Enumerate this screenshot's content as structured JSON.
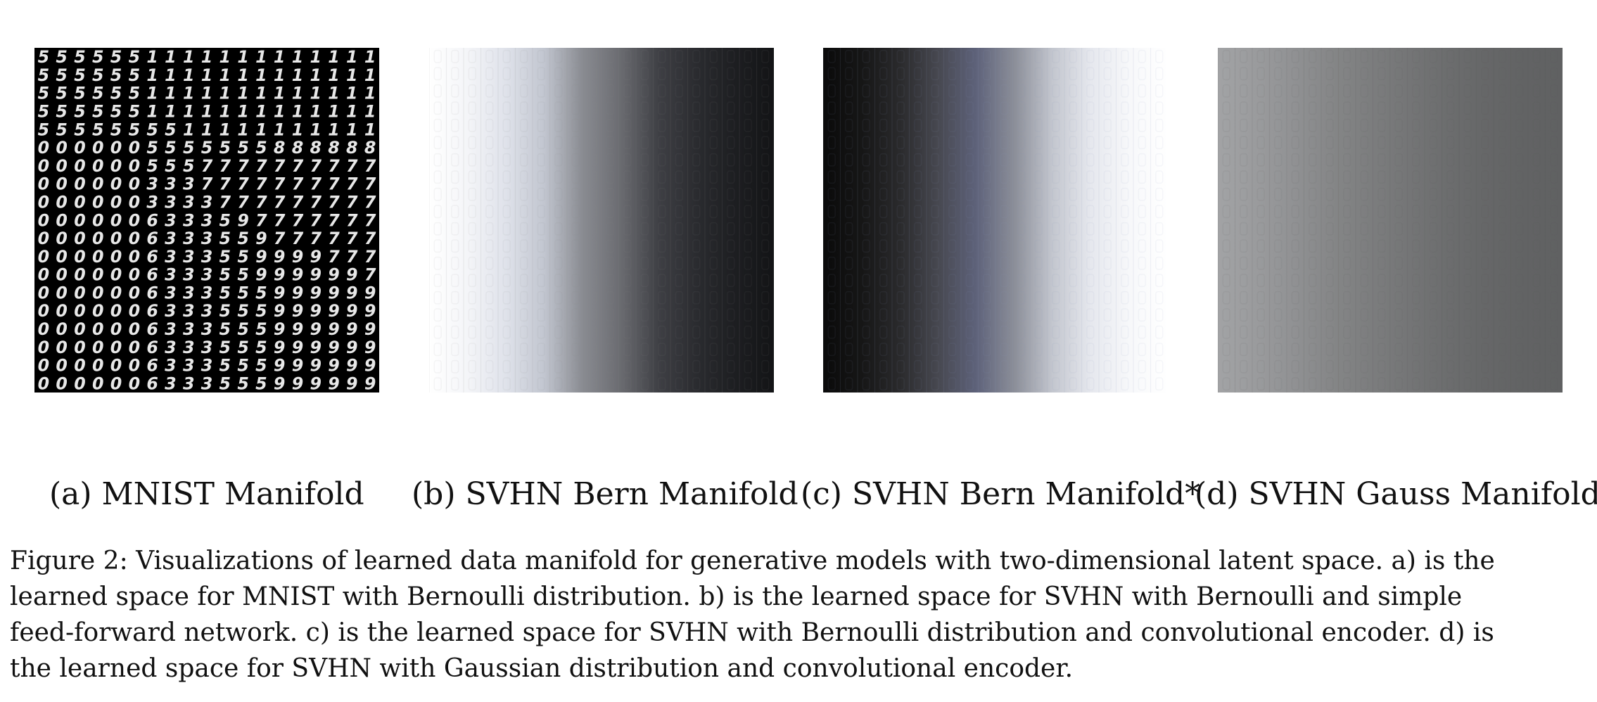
{
  "subfigures": [
    {
      "caption": "(a) MNIST Manifold",
      "digit_grid": [
        "5555551111111111111",
        "5555551111111111111",
        "5555551111111111111",
        "5555551111111111111",
        "5555555511111111111",
        "0000005555555888888",
        "0000005557777777777",
        "0000003337777777777",
        "0000003333777777777",
        "0000006333597777777",
        "0000006333559777777",
        "0000006333559999777",
        "0000006333559999997",
        "0000006333555999999",
        "0000006333555999999",
        "0000006333555999999",
        "0000006333555999999",
        "0000006333555999999",
        "0000006333555999999"
      ]
    },
    {
      "caption": "(b) SVHN Bern Manifold"
    },
    {
      "caption": "(c) SVHN Bern Manifold*"
    },
    {
      "caption": "(d) SVHN Gauss Manifold"
    }
  ],
  "figure_caption_lines": [
    "Figure 2: Visualizations of learned data manifold for generative models with two-dimensional latent space. a) is the",
    "learned space for MNIST with Bernoulli distribution. b) is the learned space for SVHN with Bernoulli and simple",
    "feed-forward network. c) is the learned space for SVHN with Bernoulli distribution and convolutional encoder. d) is",
    "the learned space for SVHN with Gaussian distribution and convolutional encoder."
  ],
  "colors": {
    "panel_b_gradient": [
      "#ffffff",
      "#f4f5f8",
      "#dfe2ea",
      "#c2c6d0",
      "#8a8c92",
      "#6a6b70",
      "#3e3f44",
      "#2a2b2f",
      "#1d1e21",
      "#131416"
    ],
    "panel_c_gradient": [
      "#0a0a0a",
      "#161616",
      "#2a2a2c",
      "#474850",
      "#5e627a",
      "#8c8f99",
      "#c4c7cf",
      "#e6e8ee",
      "#f7f8fa",
      "#ffffff"
    ],
    "panel_d_gradient": [
      "#a2a3a5",
      "#9a9b9d",
      "#909193",
      "#858687",
      "#7c7d7e",
      "#747576",
      "#6c6d6e",
      "#666768",
      "#626364",
      "#606162"
    ]
  }
}
